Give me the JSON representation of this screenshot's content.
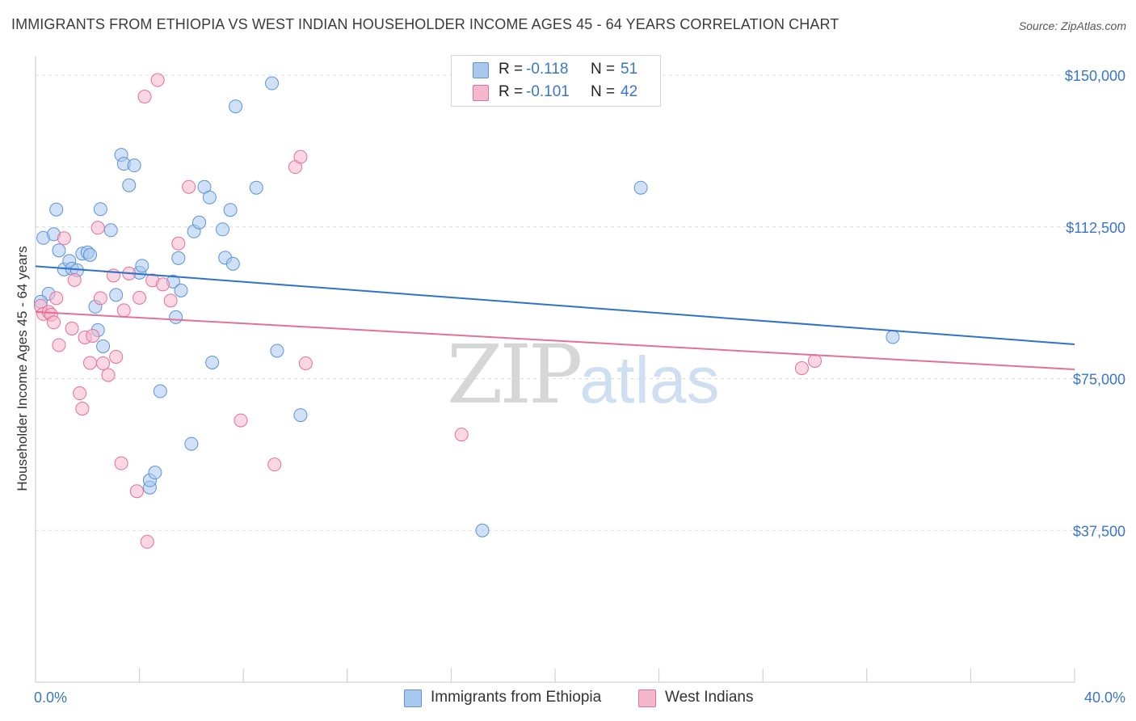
{
  "header": {
    "title": "IMMIGRANTS FROM ETHIOPIA VS WEST INDIAN HOUSEHOLDER INCOME AGES 45 - 64 YEARS CORRELATION CHART",
    "source": "Source: ZipAtlas.com"
  },
  "watermark": {
    "zip": "ZIP",
    "atlas": "atlas"
  },
  "legend_top": {
    "rows": [
      {
        "r_label": "R =",
        "r_value": "-0.118",
        "n_label": "N =",
        "n_value": "51",
        "color": "#a9c8f0"
      },
      {
        "r_label": "R =",
        "r_value": "-0.101",
        "n_label": "N =",
        "n_value": "42",
        "color": "#f5b7cb"
      }
    ]
  },
  "legend_bottom": {
    "items": [
      {
        "label": "Immigrants from Ethiopia",
        "color": "#a9c8f0"
      },
      {
        "label": "West Indians",
        "color": "#f5b7cb"
      }
    ]
  },
  "chart_data": {
    "type": "scatter",
    "title": "IMMIGRANTS FROM ETHIOPIA VS WEST INDIAN HOUSEHOLDER INCOME AGES 45 - 64 YEARS CORRELATION CHART",
    "xlabel": "",
    "ylabel": "Householder Income Ages 45 - 64 years",
    "xlim": [
      0,
      40
    ],
    "ylim": [
      0,
      153000
    ],
    "x_tick_labels": [
      "0.0%",
      "40.0%"
    ],
    "y_ticks": [
      37500,
      75000,
      112500,
      150000
    ],
    "y_tick_labels": [
      "$37,500",
      "$75,000",
      "$112,500",
      "$150,000"
    ],
    "grid": true,
    "legend_position": "top-center",
    "series": [
      {
        "name": "Immigrants from Ethiopia",
        "color": "#5b93d8",
        "fill": "#a9c8f0",
        "line_color": "#2f72c8",
        "trend": {
          "x": [
            0,
            40
          ],
          "y": [
            102800,
            83500
          ]
        },
        "points": [
          [
            0.3,
            109800
          ],
          [
            0.5,
            96000
          ],
          [
            0.7,
            110700
          ],
          [
            0.8,
            116800
          ],
          [
            0.9,
            106700
          ],
          [
            1.1,
            102000
          ],
          [
            1.3,
            104100
          ],
          [
            1.4,
            102200
          ],
          [
            1.6,
            101800
          ],
          [
            1.8,
            105900
          ],
          [
            2.0,
            106200
          ],
          [
            2.1,
            105600
          ],
          [
            2.3,
            92800
          ],
          [
            2.4,
            87000
          ],
          [
            2.5,
            116900
          ],
          [
            2.6,
            83000
          ],
          [
            2.9,
            111700
          ],
          [
            3.1,
            95700
          ],
          [
            3.3,
            130300
          ],
          [
            3.4,
            128100
          ],
          [
            3.6,
            122800
          ],
          [
            3.8,
            127700
          ],
          [
            4.0,
            101200
          ],
          [
            4.1,
            102900
          ],
          [
            4.4,
            48100
          ],
          [
            4.4,
            49900
          ],
          [
            4.6,
            51800
          ],
          [
            4.8,
            71900
          ],
          [
            5.3,
            99000
          ],
          [
            5.4,
            90200
          ],
          [
            5.5,
            104800
          ],
          [
            5.6,
            96800
          ],
          [
            6.0,
            58900
          ],
          [
            6.1,
            111400
          ],
          [
            6.3,
            113600
          ],
          [
            6.5,
            122400
          ],
          [
            6.7,
            119800
          ],
          [
            6.8,
            79000
          ],
          [
            7.2,
            111900
          ],
          [
            7.3,
            104900
          ],
          [
            7.5,
            116700
          ],
          [
            7.6,
            103400
          ],
          [
            7.7,
            142300
          ],
          [
            8.5,
            122200
          ],
          [
            9.1,
            148000
          ],
          [
            9.3,
            81900
          ],
          [
            10.2,
            66000
          ],
          [
            17.2,
            37500
          ],
          [
            23.3,
            122200
          ],
          [
            33.0,
            85300
          ],
          [
            0.2,
            94000
          ]
        ]
      },
      {
        "name": "West Indians",
        "color": "#e46f97",
        "fill": "#f5b7cb",
        "line_color": "#e46f97",
        "trend": {
          "x": [
            0,
            40
          ],
          "y": [
            91500,
            77300
          ]
        },
        "points": [
          [
            0.2,
            93000
          ],
          [
            0.3,
            91000
          ],
          [
            0.5,
            91500
          ],
          [
            0.6,
            90800
          ],
          [
            0.7,
            88900
          ],
          [
            0.8,
            94900
          ],
          [
            0.9,
            83300
          ],
          [
            1.1,
            109700
          ],
          [
            1.4,
            87400
          ],
          [
            1.5,
            99400
          ],
          [
            1.7,
            71400
          ],
          [
            1.8,
            67600
          ],
          [
            1.9,
            85200
          ],
          [
            2.1,
            78900
          ],
          [
            2.2,
            85600
          ],
          [
            2.4,
            112300
          ],
          [
            2.5,
            94900
          ],
          [
            2.6,
            78800
          ],
          [
            2.8,
            75900
          ],
          [
            3.0,
            100500
          ],
          [
            3.1,
            80400
          ],
          [
            3.3,
            54100
          ],
          [
            3.4,
            91900
          ],
          [
            3.6,
            101000
          ],
          [
            3.9,
            47200
          ],
          [
            4.0,
            95000
          ],
          [
            4.2,
            144700
          ],
          [
            4.3,
            34700
          ],
          [
            4.5,
            99300
          ],
          [
            4.7,
            148800
          ],
          [
            4.9,
            98300
          ],
          [
            5.2,
            94300
          ],
          [
            5.5,
            108400
          ],
          [
            5.9,
            122400
          ],
          [
            7.9,
            64700
          ],
          [
            9.2,
            53800
          ],
          [
            10.0,
            127300
          ],
          [
            10.2,
            129800
          ],
          [
            10.4,
            78800
          ],
          [
            16.4,
            61200
          ],
          [
            29.5,
            77600
          ],
          [
            30.0,
            79400
          ]
        ]
      }
    ]
  }
}
